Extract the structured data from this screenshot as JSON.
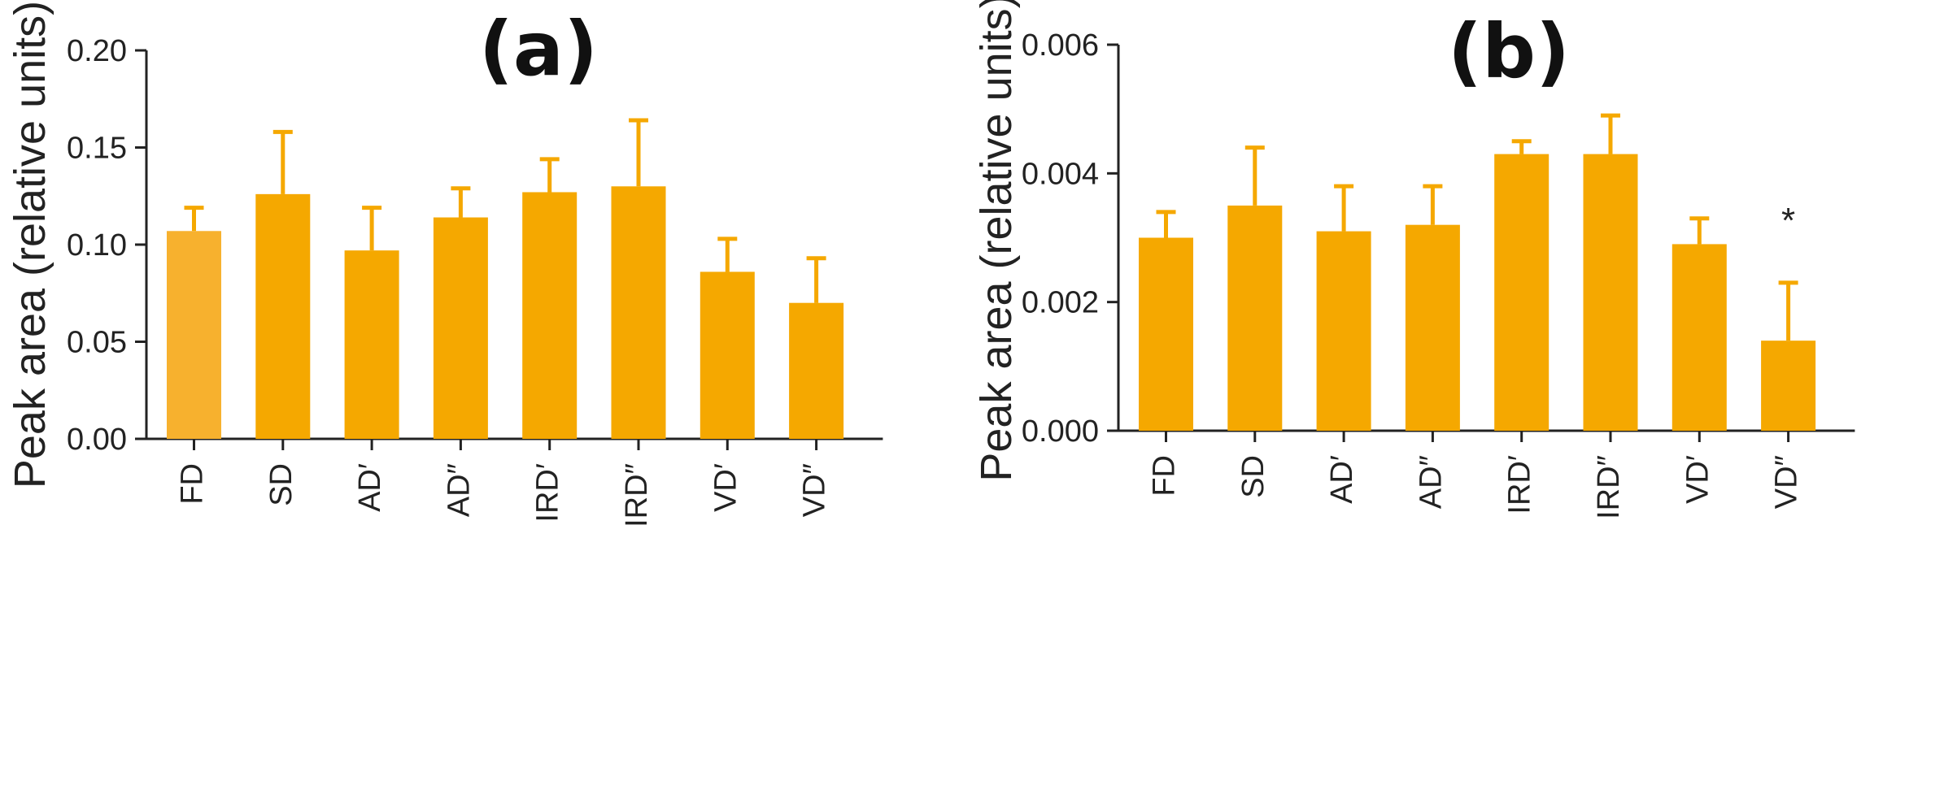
{
  "colors": {
    "bar": "#f5a800",
    "bar_highlight": "#f7b12e",
    "axis": "#222222"
  },
  "chart_data": [
    {
      "type": "bar",
      "panel_label": "(a)",
      "title": "",
      "xlabel": "",
      "ylabel": "Peak area (relative units)",
      "ylim": [
        0,
        0.2
      ],
      "yticks": [
        0,
        0.05,
        0.1,
        0.15,
        0.2
      ],
      "ytick_labels": [
        "0.00",
        "0.05",
        "0.10",
        "0.15",
        "0.20"
      ],
      "categories": [
        "FD",
        "SD",
        "AD′",
        "AD″",
        "IRD′",
        "IRD″",
        "VD′",
        "VD″"
      ],
      "values": [
        0.107,
        0.126,
        0.097,
        0.114,
        0.127,
        0.13,
        0.086,
        0.07
      ],
      "error_upper": [
        0.119,
        0.158,
        0.119,
        0.129,
        0.144,
        0.164,
        0.103,
        0.093
      ],
      "annotations": []
    },
    {
      "type": "bar",
      "panel_label": "(b)",
      "title": "",
      "xlabel": "",
      "ylabel": "Peak area (relative units)",
      "ylim": [
        0,
        0.006
      ],
      "yticks": [
        0,
        0.002,
        0.004,
        0.006
      ],
      "ytick_labels": [
        "0.000",
        "0.002",
        "0.004",
        "0.006"
      ],
      "categories": [
        "FD",
        "SD",
        "AD′",
        "AD″",
        "IRD′",
        "IRD″",
        "VD′",
        "VD″"
      ],
      "values": [
        0.003,
        0.0035,
        0.0031,
        0.0032,
        0.0043,
        0.0043,
        0.0029,
        0.0014
      ],
      "error_upper": [
        0.0034,
        0.0044,
        0.0038,
        0.0038,
        0.0045,
        0.0049,
        0.0033,
        0.0023
      ],
      "annotations": [
        {
          "category": "VD″",
          "text": "*"
        }
      ]
    }
  ]
}
